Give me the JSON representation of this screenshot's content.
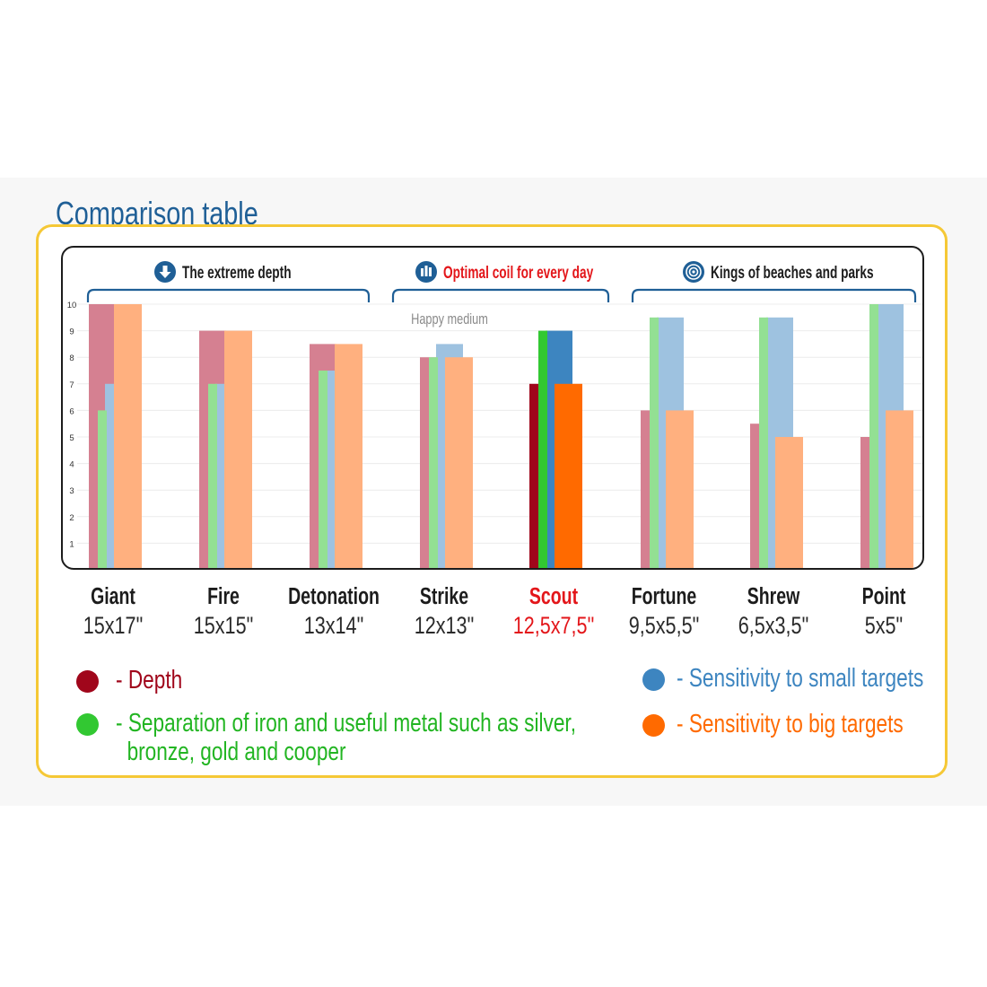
{
  "title": "Comparison table",
  "groups": [
    {
      "label": "The extreme depth",
      "icon": "down-arrow-icon",
      "color": "#1c1c1c"
    },
    {
      "label": "Optimal coil for every day",
      "icon": "bar-chart-icon",
      "color": "#e3161a"
    },
    {
      "label": "Kings of beaches and parks",
      "icon": "target-icon",
      "color": "#1c1c1c"
    }
  ],
  "colors": {
    "depth": "#a0061b",
    "separation": "#32c832",
    "small_targets": "#3d85c0",
    "big_targets": "#ff6a00",
    "depth_muted": "#d58091",
    "separation_muted": "#93e093",
    "small_targets_muted": "#9ec2e0",
    "big_targets_muted": "#ffb07f",
    "accent_blue": "#1f5f96",
    "highlight_red": "#e3161a",
    "card_border": "#f5c836"
  },
  "chart_data": {
    "type": "bar",
    "categories": [
      "Giant",
      "Fire",
      "Detonation",
      "Strike",
      "Scout",
      "Fortune",
      "Shrew",
      "Point"
    ],
    "sizes": [
      "15x17\"",
      "15x15\"",
      "13x14\"",
      "12x13\"",
      "12,5x7,5\"",
      "9,5x5,5\"",
      "6,5x3,5\"",
      "5x5\""
    ],
    "highlight_category": "Scout",
    "series": [
      {
        "name": "Depth",
        "values": [
          10,
          9,
          8.5,
          8,
          7,
          6,
          5.5,
          5
        ]
      },
      {
        "name": "Separation of iron and useful metal such as silver, bronze, gold and cooper",
        "values": [
          6,
          7,
          7.5,
          8,
          9,
          9.5,
          9.5,
          10
        ]
      },
      {
        "name": "Sensitivity to small targets",
        "values": [
          7,
          7,
          7.5,
          8.5,
          9,
          9.5,
          9.5,
          10
        ]
      },
      {
        "name": "Sensitivity to big targets",
        "values": [
          10,
          9,
          8.5,
          8,
          7,
          6,
          5,
          6
        ]
      }
    ],
    "yticks": [
      1,
      2,
      3,
      4,
      5,
      6,
      7,
      8,
      9,
      10
    ],
    "ylim": [
      0,
      10
    ],
    "annotation": "Happy medium",
    "grid": true,
    "legend_position": "bottom"
  }
}
